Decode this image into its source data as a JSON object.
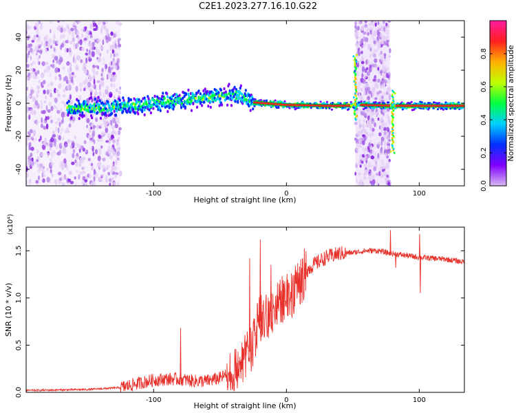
{
  "title": "C2E1.2023.277.16.10.G22",
  "chart_data": [
    {
      "type": "heatmap",
      "xlabel": "Height of straight line (km)",
      "ylabel": "Frequency (Hz)",
      "xlim": [
        -196,
        134
      ],
      "ylim": [
        -50,
        50
      ],
      "x_ticks": [
        -100,
        0,
        100
      ],
      "x_tick_labels": [
        "-100",
        "0",
        "100"
      ],
      "y_ticks": [
        -40,
        -20,
        0,
        20,
        40
      ],
      "y_tick_labels": [
        "-40",
        "-20",
        "0",
        "20",
        "40"
      ],
      "ridge": {
        "x": [
          -165,
          -150,
          -130,
          -110,
          -90,
          -70,
          -50,
          -35,
          -25,
          0,
          30,
          48,
          55,
          80,
          90,
          134
        ],
        "y": [
          -3,
          -3,
          -2.5,
          -1,
          1,
          2.5,
          4,
          5,
          0.5,
          -1,
          -1.5,
          -1.5,
          -1,
          -1.5,
          -1.5,
          -1.5
        ]
      },
      "scatter_regions": [
        {
          "x_range": [
            -196,
            -125
          ],
          "y_range": [
            -50,
            50
          ]
        },
        {
          "x_range": [
            52,
            78
          ],
          "y_range": [
            -50,
            50
          ]
        }
      ],
      "colorbar": {
        "label": "Normalized spectral amplitude",
        "range": [
          0,
          1
        ],
        "ticks": [
          0.0,
          0.2,
          0.4,
          0.6,
          0.8
        ],
        "tick_labels": [
          "0.0",
          "0.2",
          "0.4",
          "0.6",
          "0.8"
        ],
        "colors": [
          "#d9b8f2",
          "#8000ff",
          "#0030ff",
          "#00d0ff",
          "#00ff40",
          "#c0ff00",
          "#ffb000",
          "#ff2020",
          "#ff1aa0"
        ]
      },
      "grid": false
    },
    {
      "type": "line",
      "xlabel": "Height of straight line (km)",
      "ylabel": "SNR (10 * v/v)",
      "y_multiplier_label": "(x10⁴)",
      "xlim": [
        -196,
        134
      ],
      "ylim": [
        0,
        1.75
      ],
      "x_ticks": [
        -100,
        0,
        100
      ],
      "x_tick_labels": [
        "-100",
        "0",
        "100"
      ],
      "y_ticks": [
        0.0,
        0.5,
        1.0,
        1.5
      ],
      "y_tick_labels": [
        "0.0",
        "0.5",
        "1.0",
        "1.5"
      ],
      "color": "#e8302a",
      "envelope": {
        "x": [
          -196,
          -150,
          -125,
          -110,
          -100,
          -90,
          -80,
          -70,
          -60,
          -50,
          -40,
          -30,
          -25,
          -20,
          -15,
          -10,
          -5,
          0,
          5,
          10,
          15,
          20,
          30,
          40,
          50,
          60,
          70,
          75,
          80,
          90,
          100,
          110,
          120,
          134
        ],
        "y": [
          0.02,
          0.03,
          0.05,
          0.1,
          0.13,
          0.14,
          0.14,
          0.12,
          0.12,
          0.15,
          0.22,
          0.35,
          0.55,
          0.75,
          0.82,
          0.88,
          0.95,
          1.0,
          1.08,
          1.18,
          1.28,
          1.35,
          1.43,
          1.47,
          1.48,
          1.5,
          1.5,
          1.48,
          1.47,
          1.45,
          1.43,
          1.42,
          1.41,
          1.38
        ]
      },
      "spikes": [
        {
          "x": -80,
          "y": 0.68
        },
        {
          "x": -28,
          "y": 1.42
        },
        {
          "x": -20,
          "y": 1.62
        },
        {
          "x": -12,
          "y": 1.35
        },
        {
          "x": 78,
          "y": 1.72
        },
        {
          "x": 82,
          "y": 1.32
        },
        {
          "x": 100,
          "y": 1.68
        },
        {
          "x": 100.5,
          "y": 1.05
        }
      ],
      "grid": false
    }
  ]
}
